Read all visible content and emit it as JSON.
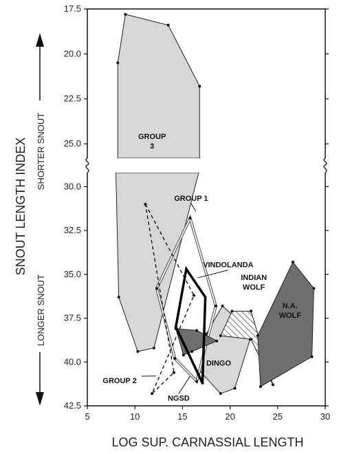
{
  "chart_data": {
    "type": "scatter",
    "title": "",
    "xlabel": "LOG SUP. CARNASSIAL LENGTH",
    "ylabel": "SNOUT LENGTH INDEX",
    "side_labels": {
      "top": "SHORTER SNOUT",
      "bottom": "LONGER SNOUT"
    },
    "xlim": [
      5,
      30
    ],
    "x_ticks": [
      5,
      10,
      15,
      20,
      25,
      30
    ],
    "y_ticks_upper": [
      17.5,
      20.0,
      22.5,
      25.0
    ],
    "y_ticks_lower": [
      30.0,
      32.5,
      35.0,
      37.5,
      40.0,
      42.5
    ],
    "y_break": [
      25.0,
      30.0
    ],
    "grid": false,
    "series": [
      {
        "name": "GROUP 3",
        "label_lines": [
          "GROUP",
          "3"
        ],
        "style": "light-fill",
        "upper": [
          [
            9,
            17.8
          ],
          [
            13.5,
            18.4
          ],
          [
            16.8,
            21.8
          ],
          [
            16.8,
            25.8
          ],
          [
            8.2,
            25.8
          ],
          [
            8.2,
            20.5
          ]
        ],
        "lower": [
          [
            8,
            29.2
          ],
          [
            16.7,
            29.2
          ],
          [
            12,
            39.2
          ],
          [
            10.3,
            39.4
          ],
          [
            8.3,
            36.3
          ]
        ]
      },
      {
        "name": "GROUP 1",
        "style": "double-outline",
        "points": [
          [
            15.8,
            31.8
          ],
          [
            18.5,
            36.8
          ],
          [
            16.5,
            41.1
          ],
          [
            14.2,
            39.8
          ],
          [
            12.3,
            35.8
          ]
        ]
      },
      {
        "name": "VINDOLANDA",
        "style": "bold-outline",
        "points": [
          [
            15.4,
            34.7
          ],
          [
            17.4,
            36.3
          ],
          [
            17.1,
            41.2
          ],
          [
            14.3,
            38.0
          ]
        ]
      },
      {
        "name": "GROUP 2",
        "style": "dashed-outline",
        "points": [
          [
            11.1,
            31.0
          ],
          [
            16.2,
            36.2
          ],
          [
            11.8,
            41.8
          ],
          [
            14.1,
            40.6
          ]
        ]
      },
      {
        "name": "NGSD",
        "style": "dark-fill",
        "points": [
          [
            14.3,
            38.1
          ],
          [
            16.5,
            38.2
          ],
          [
            18.6,
            38.8
          ],
          [
            16.0,
            39.4
          ],
          [
            15.1,
            39.6
          ]
        ]
      },
      {
        "name": "DINGO",
        "style": "light-fill",
        "points": [
          [
            19.2,
            36.8
          ],
          [
            20.8,
            37.6
          ],
          [
            22.1,
            38.7
          ],
          [
            20.5,
            41.5
          ],
          [
            19.0,
            41.8
          ],
          [
            16.8,
            40.5
          ],
          [
            17.5,
            38.4
          ]
        ]
      },
      {
        "name": "INDIAN WOLF",
        "label_lines": [
          "INDIAN",
          "WOLF"
        ],
        "style": "hatched",
        "points": [
          [
            20.2,
            37.1
          ],
          [
            22.2,
            37.1
          ],
          [
            24.5,
            41.3
          ],
          [
            22.2,
            38.7
          ],
          [
            19.0,
            38.5
          ]
        ]
      },
      {
        "name": "N.A. WOLF",
        "label_lines": [
          "N.A.",
          "WOLF"
        ],
        "style": "dark-fill",
        "points": [
          [
            26.6,
            34.3
          ],
          [
            28.8,
            35.8
          ],
          [
            28.6,
            39.7
          ],
          [
            23.2,
            41.4
          ],
          [
            22.9,
            38.5
          ]
        ]
      }
    ],
    "annotations": [
      {
        "text": "GROUP 1",
        "anchor": [
          16.4,
          31.4
        ]
      },
      {
        "text": "VINDOLANDA",
        "anchor": [
          16.6,
          35.2
        ]
      },
      {
        "text": "DINGO",
        "anchor": [
          18.0,
          40.0
        ]
      },
      {
        "text": "NGSD",
        "anchor": [
          15.8,
          40.8
        ]
      },
      {
        "text": "GROUP 2",
        "anchor": [
          12.2,
          40.8
        ]
      }
    ]
  }
}
